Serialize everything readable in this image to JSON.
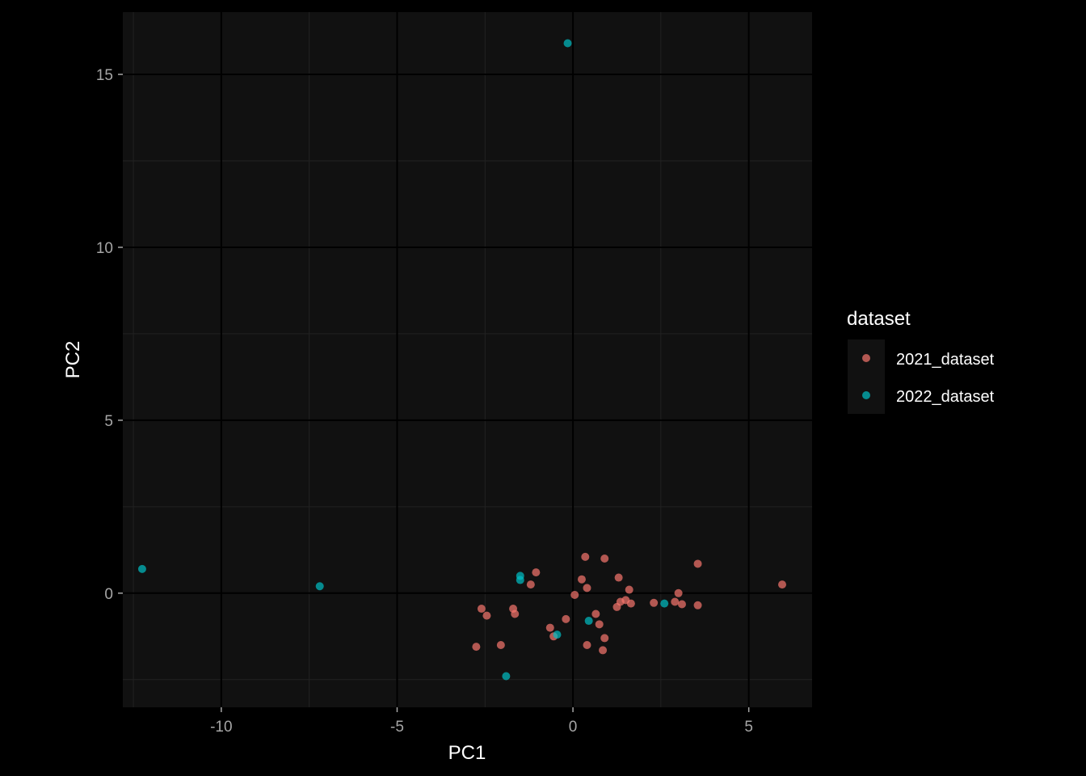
{
  "chart_data": {
    "type": "scatter",
    "title": "",
    "xlabel": "PC1",
    "ylabel": "PC2",
    "xlim": [
      -12.8,
      6.8
    ],
    "ylim": [
      -3.3,
      16.8
    ],
    "x_ticks": [
      -10,
      -5,
      0,
      5
    ],
    "y_ticks": [
      0,
      5,
      10,
      15
    ],
    "grid": true,
    "legend": {
      "title": "dataset",
      "position": "right"
    },
    "colors": {
      "page_background": "#000000",
      "panel_background": "#111111",
      "grid_major": "#000000",
      "grid_minor": "#222222"
    },
    "series": [
      {
        "name": "2021_dataset",
        "color": "#f8766d",
        "points": [
          {
            "x": -2.75,
            "y": -1.55
          },
          {
            "x": -2.6,
            "y": -0.45
          },
          {
            "x": -2.45,
            "y": -0.65
          },
          {
            "x": -2.05,
            "y": -1.5
          },
          {
            "x": -1.7,
            "y": -0.45
          },
          {
            "x": -1.65,
            "y": -0.6
          },
          {
            "x": -1.2,
            "y": 0.25
          },
          {
            "x": -1.05,
            "y": 0.6
          },
          {
            "x": -0.65,
            "y": -1.0
          },
          {
            "x": -0.55,
            "y": -1.25
          },
          {
            "x": -0.2,
            "y": -0.75
          },
          {
            "x": 0.05,
            "y": -0.05
          },
          {
            "x": 0.25,
            "y": 0.4
          },
          {
            "x": 0.35,
            "y": 1.05
          },
          {
            "x": 0.4,
            "y": 0.15
          },
          {
            "x": 0.4,
            "y": -1.5
          },
          {
            "x": 0.65,
            "y": -0.6
          },
          {
            "x": 0.75,
            "y": -0.9
          },
          {
            "x": 0.85,
            "y": -1.65
          },
          {
            "x": 0.9,
            "y": -1.3
          },
          {
            "x": 0.9,
            "y": 1.0
          },
          {
            "x": 1.25,
            "y": -0.4
          },
          {
            "x": 1.3,
            "y": 0.45
          },
          {
            "x": 1.35,
            "y": -0.25
          },
          {
            "x": 1.5,
            "y": -0.2
          },
          {
            "x": 1.6,
            "y": 0.1
          },
          {
            "x": 1.65,
            "y": -0.3
          },
          {
            "x": 2.3,
            "y": -0.28
          },
          {
            "x": 2.9,
            "y": -0.25
          },
          {
            "x": 3.0,
            "y": 0.0
          },
          {
            "x": 3.1,
            "y": -0.32
          },
          {
            "x": 3.55,
            "y": -0.35
          },
          {
            "x": 3.55,
            "y": 0.85
          },
          {
            "x": 5.95,
            "y": 0.25
          }
        ]
      },
      {
        "name": "2022_dataset",
        "color": "#00bfc4",
        "points": [
          {
            "x": -12.25,
            "y": 0.7
          },
          {
            "x": -7.2,
            "y": 0.2
          },
          {
            "x": -1.9,
            "y": -2.4
          },
          {
            "x": -1.5,
            "y": 0.5
          },
          {
            "x": -1.5,
            "y": 0.38
          },
          {
            "x": -0.45,
            "y": -1.2
          },
          {
            "x": -0.15,
            "y": 15.9
          },
          {
            "x": 0.45,
            "y": -0.8
          },
          {
            "x": 2.6,
            "y": -0.3
          }
        ]
      }
    ]
  }
}
